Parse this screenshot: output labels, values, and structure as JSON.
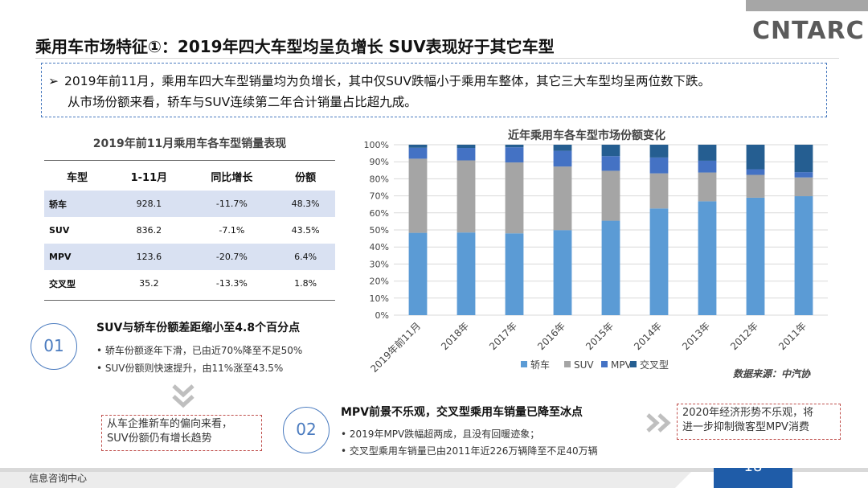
{
  "header": {
    "logo": "CNTARC",
    "title": "乘用车市场特征①：2019年四大车型均呈负增长 SUV表现好于其它车型"
  },
  "summary": {
    "line1": "2019年前11月，乘用车四大车型销量均为负增长，其中仅SUV跌幅小于乘用车整体，其它三大车型均呈两位数下跌。",
    "line2": "从市场份额来看，轿车与SUV连续第二年合计销量占比超九成。"
  },
  "table": {
    "title": "2019年前11月乘用车各车型销量表现",
    "headers": [
      "车型",
      "1-11月",
      "同比增长",
      "份额"
    ],
    "rows": [
      [
        "轿车",
        "928.1",
        "-11.7%",
        "48.3%"
      ],
      [
        "SUV",
        "836.2",
        "-7.1%",
        "43.5%"
      ],
      [
        "MPV",
        "123.6",
        "-20.7%",
        "6.4%"
      ],
      [
        "交叉型",
        "35.2",
        "-13.3%",
        "1.8%"
      ]
    ]
  },
  "section1": {
    "num": "01",
    "title": "SUV与轿车份额差距缩小至4.8个百分点",
    "bullets": [
      "轿车份额逐年下滑，已由近70%降至不足50%",
      "SUV份额则快速提升，由11%涨至43.5%"
    ]
  },
  "note1": {
    "line1": "从车企推新车的偏向来看，",
    "line2": "SUV份额仍有增长趋势"
  },
  "section2": {
    "num": "02",
    "title": "MPV前景不乐观，交叉型乘用车销量已降至冰点",
    "bullets": [
      "2019年MPV跌幅超两成，且没有回暖迹象；",
      "交叉型乘用车销量已由2011年近226万辆降至不足40万辆"
    ]
  },
  "note2": {
    "line1": "2020年经济形势不乐观，将",
    "line2": "进一步抑制微客型MPV消费"
  },
  "footer": {
    "left": "信息咨询中心",
    "page": "18"
  },
  "source": "数据来源：中汽协",
  "colors": {
    "sedan": "#5b9bd5",
    "suv": "#a5a5a5",
    "mpv": "#4472c4",
    "cross": "#255e91",
    "accent": "#4a7bbf",
    "red": "#c0504d"
  },
  "chart_data": {
    "type": "bar",
    "stacked": true,
    "title": "近年乘用车各车型市场份额变化",
    "categories": [
      "2019年前11月",
      "2018年",
      "2017年",
      "2016年",
      "2015年",
      "2014年",
      "2013年",
      "2012年",
      "2011年"
    ],
    "series": [
      {
        "name": "轿车",
        "values": [
          48.3,
          48.5,
          48.0,
          49.9,
          55.4,
          62.6,
          66.8,
          68.9,
          69.8
        ]
      },
      {
        "name": "SUV",
        "values": [
          43.5,
          42.3,
          41.6,
          37.3,
          29.3,
          20.6,
          16.9,
          13.4,
          11.0
        ]
      },
      {
        "name": "MPV",
        "values": [
          6.4,
          7.3,
          8.9,
          9.2,
          8.6,
          9.3,
          6.9,
          3.3,
          3.1
        ]
      },
      {
        "name": "交叉型",
        "values": [
          1.8,
          1.9,
          1.5,
          3.6,
          6.7,
          7.5,
          9.4,
          14.4,
          16.1
        ]
      }
    ],
    "ylim": [
      0,
      100
    ],
    "yticks": [
      "0%",
      "10%",
      "20%",
      "30%",
      "40%",
      "50%",
      "60%",
      "70%",
      "80%",
      "90%",
      "100%"
    ],
    "grid": true,
    "legend": "bottom"
  }
}
